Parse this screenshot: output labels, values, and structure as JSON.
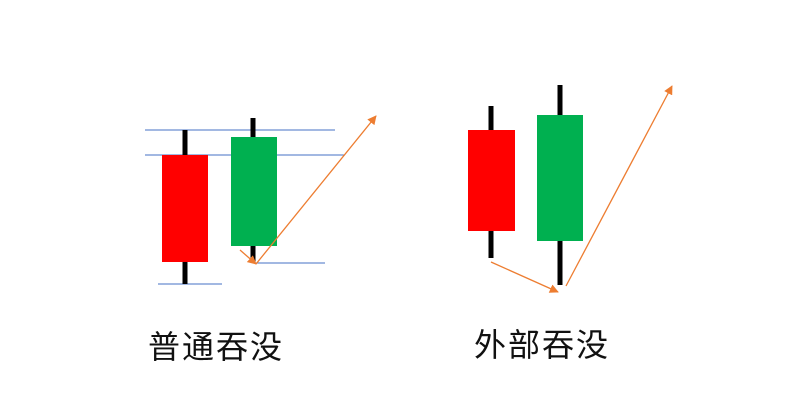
{
  "colors": {
    "bearish": "#ff0000",
    "bullish": "#00b050",
    "wick": "#000000",
    "guide_line": "#4472c4",
    "arrow": "#ed7d31"
  },
  "diagrams": [
    {
      "caption": "普通吞没",
      "candles": [
        {
          "kind": "bearish"
        },
        {
          "kind": "bullish"
        }
      ],
      "guide_lines": 4,
      "arrow_icons": [
        "arrow-down-icon",
        "arrow-up-icon"
      ]
    },
    {
      "caption": "外部吞没",
      "candles": [
        {
          "kind": "bearish"
        },
        {
          "kind": "bullish"
        }
      ],
      "guide_lines": 0,
      "arrow_icons": [
        "arrow-down-icon",
        "arrow-up-icon"
      ]
    }
  ]
}
